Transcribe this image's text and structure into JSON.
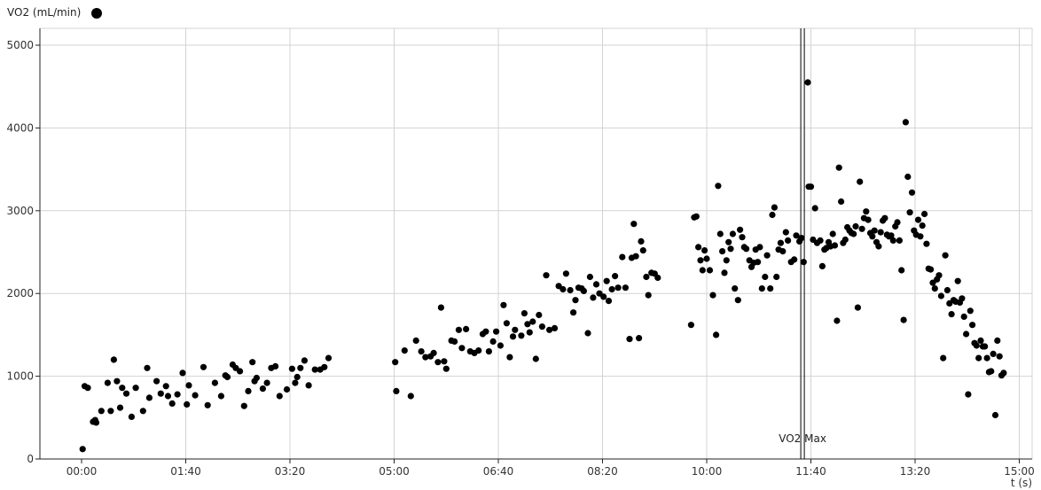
{
  "chart_data": {
    "type": "scatter",
    "legend": {
      "label": "VO2 (mL/min)",
      "position": "top-left"
    },
    "xlabel": "t (s)",
    "ylabel": "",
    "xlim": [
      0,
      900
    ],
    "ylim": [
      0,
      5200
    ],
    "x_ticks": [
      {
        "value": 0,
        "label": "00:00"
      },
      {
        "value": 100,
        "label": "01:40"
      },
      {
        "value": 200,
        "label": "03:20"
      },
      {
        "value": 300,
        "label": "05:00"
      },
      {
        "value": 400,
        "label": "06:40"
      },
      {
        "value": 500,
        "label": "08:20"
      },
      {
        "value": 600,
        "label": "10:00"
      },
      {
        "value": 700,
        "label": "11:40"
      },
      {
        "value": 800,
        "label": "13:20"
      },
      {
        "value": 900,
        "label": "15:00"
      }
    ],
    "y_ticks": [
      {
        "value": 0,
        "label": "0"
      },
      {
        "value": 1000,
        "label": "1000"
      },
      {
        "value": 2000,
        "label": "2000"
      },
      {
        "value": 3000,
        "label": "3000"
      },
      {
        "value": 4000,
        "label": "4000"
      },
      {
        "value": 5000,
        "label": "5000"
      }
    ],
    "grid": true,
    "annotations": [
      {
        "type": "vline",
        "x": 692,
        "label": "VO2 Max"
      }
    ],
    "series": [
      {
        "name": "VO2 (mL/min)",
        "color": "#000000",
        "points": [
          [
            1,
            120
          ],
          [
            3,
            880
          ],
          [
            6,
            860
          ],
          [
            11,
            450
          ],
          [
            13,
            470
          ],
          [
            14,
            440
          ],
          [
            19,
            580
          ],
          [
            25,
            920
          ],
          [
            28,
            580
          ],
          [
            31,
            1200
          ],
          [
            34,
            940
          ],
          [
            37,
            620
          ],
          [
            39,
            860
          ],
          [
            43,
            790
          ],
          [
            48,
            510
          ],
          [
            52,
            860
          ],
          [
            59,
            580
          ],
          [
            63,
            1100
          ],
          [
            65,
            740
          ],
          [
            72,
            940
          ],
          [
            76,
            790
          ],
          [
            81,
            880
          ],
          [
            83,
            760
          ],
          [
            87,
            670
          ],
          [
            92,
            780
          ],
          [
            97,
            1040
          ],
          [
            101,
            660
          ],
          [
            103,
            890
          ],
          [
            109,
            770
          ],
          [
            117,
            1110
          ],
          [
            121,
            650
          ],
          [
            128,
            920
          ],
          [
            134,
            760
          ],
          [
            138,
            1010
          ],
          [
            140,
            990
          ],
          [
            145,
            1140
          ],
          [
            148,
            1100
          ],
          [
            152,
            1060
          ],
          [
            156,
            640
          ],
          [
            160,
            820
          ],
          [
            164,
            1170
          ],
          [
            166,
            940
          ],
          [
            168,
            980
          ],
          [
            174,
            850
          ],
          [
            178,
            920
          ],
          [
            182,
            1100
          ],
          [
            186,
            1120
          ],
          [
            190,
            760
          ],
          [
            197,
            840
          ],
          [
            202,
            1090
          ],
          [
            205,
            920
          ],
          [
            207,
            990
          ],
          [
            210,
            1100
          ],
          [
            214,
            1190
          ],
          [
            218,
            890
          ],
          [
            224,
            1080
          ],
          [
            229,
            1080
          ],
          [
            233,
            1110
          ],
          [
            237,
            1220
          ],
          [
            301,
            1170
          ],
          [
            302,
            820
          ],
          [
            310,
            1310
          ],
          [
            316,
            760
          ],
          [
            321,
            1430
          ],
          [
            326,
            1300
          ],
          [
            330,
            1230
          ],
          [
            335,
            1240
          ],
          [
            338,
            1280
          ],
          [
            342,
            1170
          ],
          [
            345,
            1830
          ],
          [
            348,
            1180
          ],
          [
            350,
            1090
          ],
          [
            355,
            1430
          ],
          [
            358,
            1420
          ],
          [
            362,
            1560
          ],
          [
            365,
            1340
          ],
          [
            369,
            1570
          ],
          [
            373,
            1300
          ],
          [
            377,
            1280
          ],
          [
            381,
            1310
          ],
          [
            385,
            1510
          ],
          [
            388,
            1540
          ],
          [
            391,
            1300
          ],
          [
            395,
            1420
          ],
          [
            398,
            1540
          ],
          [
            402,
            1370
          ],
          [
            405,
            1860
          ],
          [
            408,
            1640
          ],
          [
            411,
            1230
          ],
          [
            414,
            1480
          ],
          [
            416,
            1560
          ],
          [
            422,
            1490
          ],
          [
            425,
            1760
          ],
          [
            428,
            1630
          ],
          [
            430,
            1530
          ],
          [
            433,
            1660
          ],
          [
            436,
            1210
          ],
          [
            439,
            1740
          ],
          [
            442,
            1600
          ],
          [
            446,
            2220
          ],
          [
            449,
            1560
          ],
          [
            454,
            1580
          ],
          [
            458,
            2090
          ],
          [
            462,
            2050
          ],
          [
            465,
            2240
          ],
          [
            469,
            2040
          ],
          [
            472,
            1770
          ],
          [
            474,
            1920
          ],
          [
            477,
            2070
          ],
          [
            480,
            2060
          ],
          [
            482,
            2030
          ],
          [
            486,
            1520
          ],
          [
            488,
            2200
          ],
          [
            491,
            1950
          ],
          [
            494,
            2110
          ],
          [
            497,
            2000
          ],
          [
            501,
            1960
          ],
          [
            504,
            2150
          ],
          [
            506,
            1910
          ],
          [
            509,
            2050
          ],
          [
            512,
            2210
          ],
          [
            515,
            2070
          ],
          [
            519,
            2440
          ],
          [
            522,
            2070
          ],
          [
            526,
            1450
          ],
          [
            528,
            2430
          ],
          [
            530,
            2840
          ],
          [
            532,
            2450
          ],
          [
            535,
            1460
          ],
          [
            537,
            2630
          ],
          [
            539,
            2520
          ],
          [
            542,
            2200
          ],
          [
            544,
            1980
          ],
          [
            547,
            2250
          ],
          [
            550,
            2240
          ],
          [
            553,
            2190
          ],
          [
            585,
            1620
          ],
          [
            588,
            2920
          ],
          [
            590,
            2930
          ],
          [
            592,
            2560
          ],
          [
            594,
            2400
          ],
          [
            596,
            2280
          ],
          [
            598,
            2520
          ],
          [
            600,
            2420
          ],
          [
            603,
            2280
          ],
          [
            606,
            1980
          ],
          [
            609,
            1500
          ],
          [
            611,
            3300
          ],
          [
            613,
            2720
          ],
          [
            615,
            2510
          ],
          [
            617,
            2250
          ],
          [
            619,
            2400
          ],
          [
            621,
            2620
          ],
          [
            623,
            2540
          ],
          [
            625,
            2720
          ],
          [
            627,
            2060
          ],
          [
            630,
            1920
          ],
          [
            632,
            2770
          ],
          [
            634,
            2680
          ],
          [
            636,
            2560
          ],
          [
            638,
            2540
          ],
          [
            641,
            2400
          ],
          [
            643,
            2320
          ],
          [
            645,
            2370
          ],
          [
            647,
            2530
          ],
          [
            649,
            2380
          ],
          [
            651,
            2560
          ],
          [
            653,
            2060
          ],
          [
            656,
            2200
          ],
          [
            658,
            2460
          ],
          [
            661,
            2060
          ],
          [
            663,
            2950
          ],
          [
            665,
            3040
          ],
          [
            667,
            2200
          ],
          [
            669,
            2530
          ],
          [
            671,
            2610
          ],
          [
            673,
            2510
          ],
          [
            676,
            2740
          ],
          [
            678,
            2640
          ],
          [
            681,
            2380
          ],
          [
            684,
            2410
          ],
          [
            686,
            2700
          ],
          [
            689,
            2630
          ],
          [
            691,
            2670
          ],
          [
            693,
            2380
          ],
          [
            697,
            4550
          ],
          [
            698,
            3290
          ],
          [
            700,
            3290
          ],
          [
            702,
            2650
          ],
          [
            704,
            3030
          ],
          [
            706,
            2610
          ],
          [
            709,
            2640
          ],
          [
            711,
            2330
          ],
          [
            713,
            2530
          ],
          [
            715,
            2550
          ],
          [
            717,
            2620
          ],
          [
            719,
            2570
          ],
          [
            721,
            2720
          ],
          [
            723,
            2580
          ],
          [
            725,
            1670
          ],
          [
            727,
            3520
          ],
          [
            729,
            3110
          ],
          [
            731,
            2610
          ],
          [
            733,
            2650
          ],
          [
            735,
            2800
          ],
          [
            737,
            2760
          ],
          [
            739,
            2730
          ],
          [
            741,
            2720
          ],
          [
            743,
            2810
          ],
          [
            745,
            1830
          ],
          [
            747,
            3350
          ],
          [
            749,
            2780
          ],
          [
            751,
            2910
          ],
          [
            753,
            2990
          ],
          [
            755,
            2890
          ],
          [
            757,
            2730
          ],
          [
            759,
            2690
          ],
          [
            761,
            2760
          ],
          [
            763,
            2620
          ],
          [
            765,
            2570
          ],
          [
            767,
            2740
          ],
          [
            769,
            2880
          ],
          [
            771,
            2910
          ],
          [
            773,
            2710
          ],
          [
            775,
            2690
          ],
          [
            777,
            2700
          ],
          [
            779,
            2640
          ],
          [
            781,
            2810
          ],
          [
            783,
            2860
          ],
          [
            785,
            2640
          ],
          [
            787,
            2280
          ],
          [
            789,
            1680
          ],
          [
            791,
            4070
          ],
          [
            793,
            3410
          ],
          [
            795,
            2980
          ],
          [
            797,
            3220
          ],
          [
            799,
            2760
          ],
          [
            801,
            2710
          ],
          [
            803,
            2890
          ],
          [
            805,
            2690
          ],
          [
            807,
            2820
          ],
          [
            809,
            2960
          ],
          [
            811,
            2600
          ],
          [
            813,
            2300
          ],
          [
            815,
            2290
          ],
          [
            817,
            2130
          ],
          [
            819,
            2060
          ],
          [
            821,
            2170
          ],
          [
            823,
            2220
          ],
          [
            825,
            1970
          ],
          [
            827,
            1220
          ],
          [
            829,
            2460
          ],
          [
            831,
            2040
          ],
          [
            833,
            1880
          ],
          [
            835,
            1750
          ],
          [
            837,
            1920
          ],
          [
            839,
            1900
          ],
          [
            841,
            2150
          ],
          [
            843,
            1890
          ],
          [
            845,
            1940
          ],
          [
            847,
            1720
          ],
          [
            849,
            1510
          ],
          [
            851,
            780
          ],
          [
            853,
            1790
          ],
          [
            855,
            1620
          ],
          [
            857,
            1400
          ],
          [
            859,
            1370
          ],
          [
            861,
            1220
          ],
          [
            863,
            1430
          ],
          [
            865,
            1360
          ],
          [
            867,
            1360
          ],
          [
            869,
            1220
          ],
          [
            871,
            1050
          ],
          [
            873,
            1060
          ],
          [
            875,
            1270
          ],
          [
            877,
            530
          ],
          [
            879,
            1430
          ],
          [
            881,
            1240
          ],
          [
            883,
            1010
          ],
          [
            885,
            1040
          ]
        ]
      }
    ]
  }
}
